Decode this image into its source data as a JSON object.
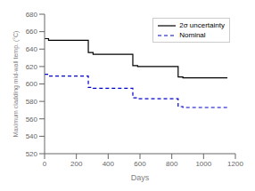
{
  "chart_data": {
    "type": "line",
    "xlabel": "Days",
    "ylabel": "Maximum cladding mid-wall temp. (°C)",
    "xlim": [
      0,
      1200
    ],
    "xticks": [
      0,
      200,
      400,
      600,
      800,
      1000,
      1200
    ],
    "ylim": [
      520,
      680
    ],
    "yticks": [
      520,
      540,
      560,
      580,
      600,
      620,
      640,
      660,
      680
    ],
    "grid": false,
    "legend": "upper right",
    "series": [
      {
        "name": "2σ uncertainty",
        "color": "#000000",
        "line_style": "solid",
        "segments": [
          [
            0,
            25,
            652
          ],
          [
            25,
            275,
            650
          ],
          [
            275,
            305,
            636
          ],
          [
            305,
            555,
            634
          ],
          [
            555,
            585,
            621
          ],
          [
            585,
            840,
            620
          ],
          [
            840,
            870,
            608
          ],
          [
            870,
            1150,
            607
          ]
        ]
      },
      {
        "name": "Nominal",
        "color": "#0000cc",
        "line_style": "dashed",
        "segments": [
          [
            0,
            25,
            611
          ],
          [
            25,
            275,
            609
          ],
          [
            275,
            305,
            596
          ],
          [
            305,
            555,
            595
          ],
          [
            555,
            585,
            584
          ],
          [
            585,
            840,
            583
          ],
          [
            840,
            870,
            574
          ],
          [
            870,
            1150,
            573
          ]
        ]
      }
    ]
  }
}
